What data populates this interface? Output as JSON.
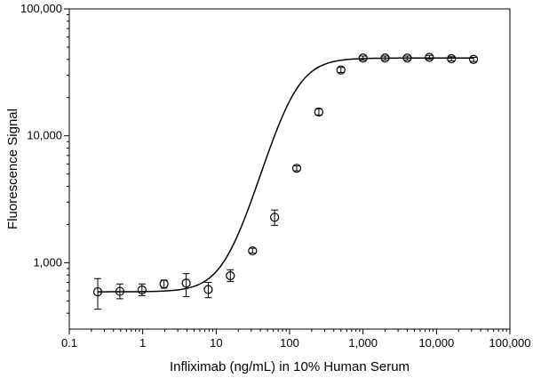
{
  "chart_data": {
    "type": "scatter",
    "title": "",
    "xlabel": "Infliximab (ng/mL) in 10% Human Serum",
    "ylabel": "Fluorescence Signal",
    "x_scale": "log",
    "y_scale": "log",
    "xlim": [
      0.1,
      100000
    ],
    "ylim": [
      300,
      100000
    ],
    "x_ticks": [
      0.1,
      1,
      10,
      100,
      1000,
      10000,
      100000
    ],
    "x_tick_labels": [
      "0.1",
      "1",
      "10",
      "100",
      "1,000",
      "10,000",
      "100,000"
    ],
    "y_ticks": [
      1000,
      10000,
      100000
    ],
    "y_tick_labels": [
      "1,000",
      "10,000",
      "100,000"
    ],
    "grid": false,
    "legend": "none",
    "marker": "open-circle",
    "series": [
      {
        "name": "",
        "x": [
          0.244,
          0.488,
          0.977,
          1.95,
          3.91,
          7.81,
          15.6,
          31.3,
          62.5,
          125,
          250,
          500,
          1000,
          2000,
          4000,
          8000,
          16000,
          32000
        ],
        "y": [
          590,
          595,
          610,
          680,
          690,
          615,
          790,
          1240,
          2280,
          5550,
          15400,
          33000,
          41000,
          41000,
          41000,
          41500,
          40500,
          40000
        ],
        "y_err_low": [
          430,
          520,
          550,
          630,
          540,
          530,
          710,
          1190,
          1970,
          5300,
          14600,
          31500,
          39500,
          39500,
          39500,
          40000,
          39000,
          38500
        ],
        "y_err_high": [
          750,
          680,
          680,
          730,
          820,
          700,
          880,
          1300,
          2600,
          5800,
          16300,
          34600,
          42500,
          42500,
          42500,
          43000,
          42000,
          41500
        ]
      }
    ],
    "fit_curve": {
      "model": "4PL",
      "bottom": 590,
      "top": 41000,
      "ec50": 110,
      "hill": 2.1
    }
  }
}
